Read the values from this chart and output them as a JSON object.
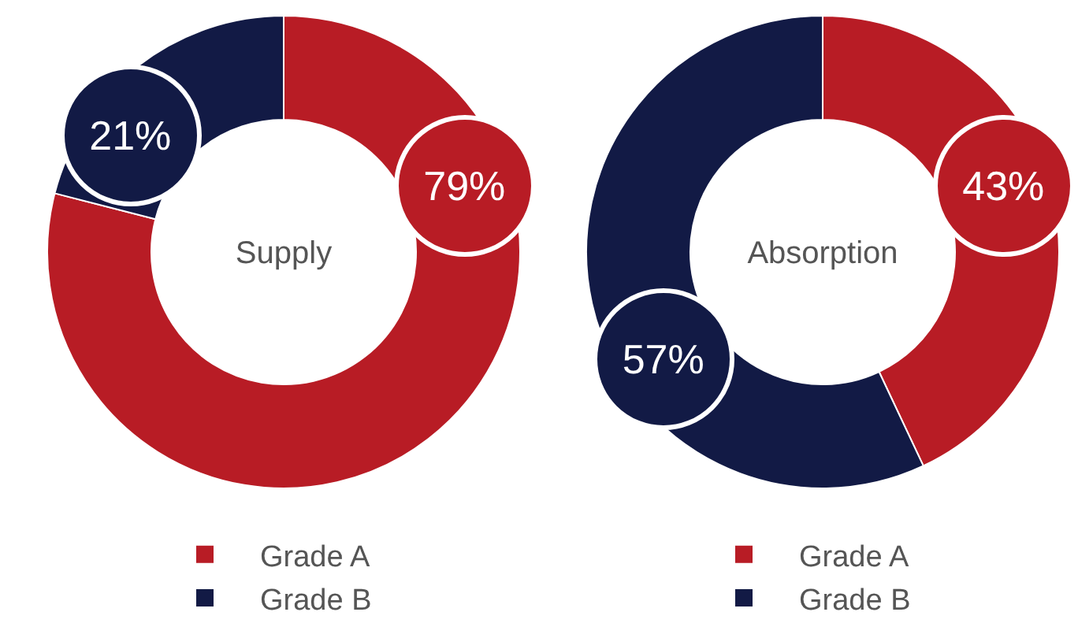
{
  "chart_data": [
    {
      "type": "donut",
      "title": "Supply",
      "categories": [
        "Grade A",
        "Grade B"
      ],
      "values": [
        79,
        21
      ],
      "colors": [
        "#b81c25",
        "#121a45"
      ],
      "value_labels": [
        "79%",
        "21%"
      ],
      "legend": "bottom"
    },
    {
      "type": "donut",
      "title": "Absorption",
      "categories": [
        "Grade A",
        "Grade B"
      ],
      "values": [
        43,
        57
      ],
      "colors": [
        "#b81c25",
        "#121a45"
      ],
      "value_labels": [
        "43%",
        "57%"
      ],
      "legend": "bottom"
    }
  ]
}
